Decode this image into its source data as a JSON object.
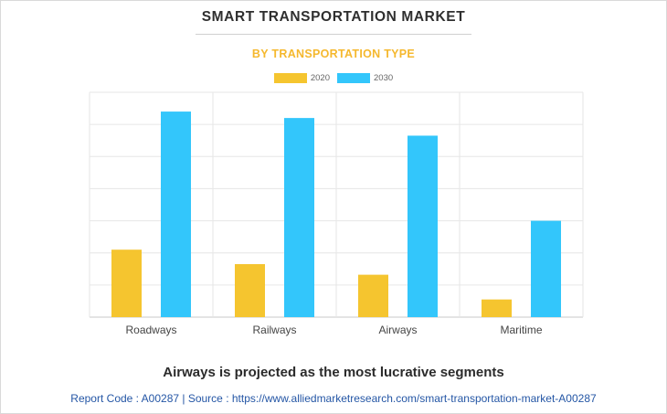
{
  "header": {
    "title": "SMART TRANSPORTATION MARKET",
    "subtitle": "BY TRANSPORTATION TYPE"
  },
  "colors": {
    "series_2020": "#f5c52f",
    "series_2030": "#33c6fb",
    "title": "#2f2f2f",
    "subtitle": "#f5b82e",
    "footer_link": "#2456a5"
  },
  "chart_data": {
    "type": "bar",
    "title": "SMART TRANSPORTATION MARKET",
    "subtitle": "BY TRANSPORTATION TYPE",
    "categories": [
      "Roadways",
      "Railways",
      "Airways",
      "Maritime"
    ],
    "series": [
      {
        "name": "2020",
        "values": [
          21,
          16.5,
          13.2,
          5.5
        ]
      },
      {
        "name": "2030",
        "values": [
          64,
          62,
          56.5,
          30
        ]
      }
    ],
    "ylim": [
      0,
      70
    ],
    "ygrid_step": 10,
    "xlabel": "",
    "ylabel": "",
    "y_tick_labels_shown": false,
    "grid": true,
    "legend_position": "top-center"
  },
  "footer": {
    "headline": "Airways is projected as the most lucrative segments",
    "source_line": "Report Code : A00287  |  Source : https://www.alliedmarketresearch.com/smart-transportation-market-A00287"
  }
}
